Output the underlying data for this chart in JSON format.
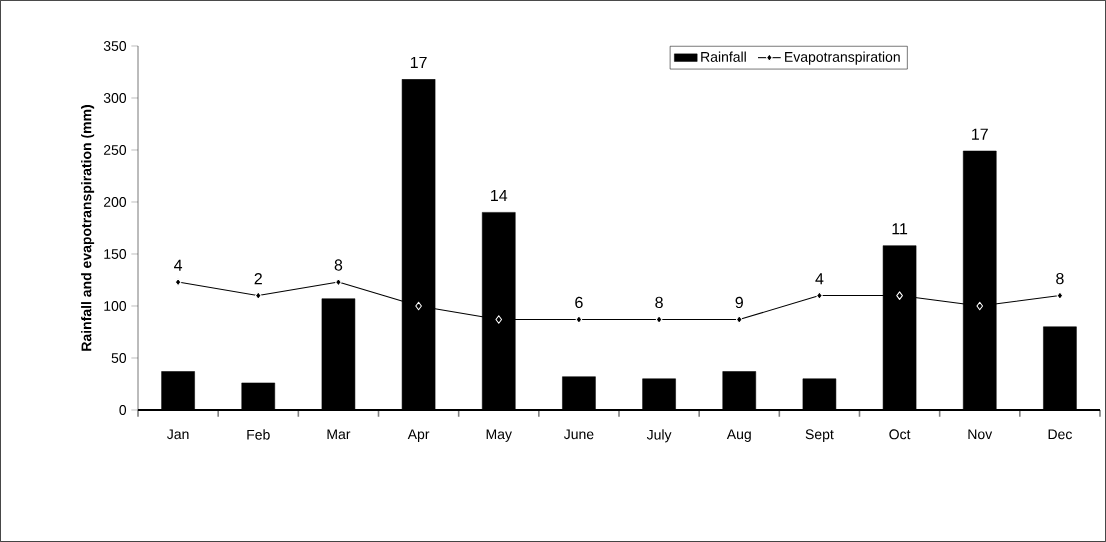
{
  "chart_data": {
    "type": "bar",
    "ylabel": "Rainfall and evapotranspiration (mm)",
    "categories": [
      "Jan",
      "Feb",
      "Mar",
      "Apr",
      "May",
      "June",
      "July",
      "Aug",
      "Sept",
      "Oct",
      "Nov",
      "Dec"
    ],
    "series": [
      {
        "name": "Rainfall",
        "color": "#000000",
        "values": [
          37,
          26,
          107,
          318,
          190,
          32,
          30,
          37,
          30,
          158,
          249,
          80
        ]
      },
      {
        "name": "Evapotranspiration",
        "type": "line",
        "color": "#000000",
        "marker": "diamond",
        "values": [
          123,
          110,
          123,
          100,
          87,
          87,
          87,
          87,
          110,
          110,
          100,
          110
        ]
      }
    ],
    "annotations": [
      {
        "text": "4",
        "x": "Jan",
        "y": 123
      },
      {
        "text": "2",
        "x": "Feb",
        "y": 110
      },
      {
        "text": "8",
        "x": "Mar",
        "y": 123
      },
      {
        "text": "17",
        "x": "Apr",
        "y": 318
      },
      {
        "text": "14",
        "x": "May",
        "y": 190
      },
      {
        "text": "6",
        "x": "June",
        "y": 87
      },
      {
        "text": "8",
        "x": "July",
        "y": 87
      },
      {
        "text": "9",
        "x": "Aug",
        "y": 87
      },
      {
        "text": "4",
        "x": "Sept",
        "y": 110
      },
      {
        "text": "11",
        "x": "Oct",
        "y": 158
      },
      {
        "text": "17",
        "x": "Nov",
        "y": 249
      },
      {
        "text": "8",
        "x": "Dec",
        "y": 110
      }
    ],
    "ylim": [
      0,
      350
    ],
    "yticks": [
      0,
      50,
      100,
      150,
      200,
      250,
      300,
      350
    ],
    "legend": "top right",
    "grid": false
  }
}
